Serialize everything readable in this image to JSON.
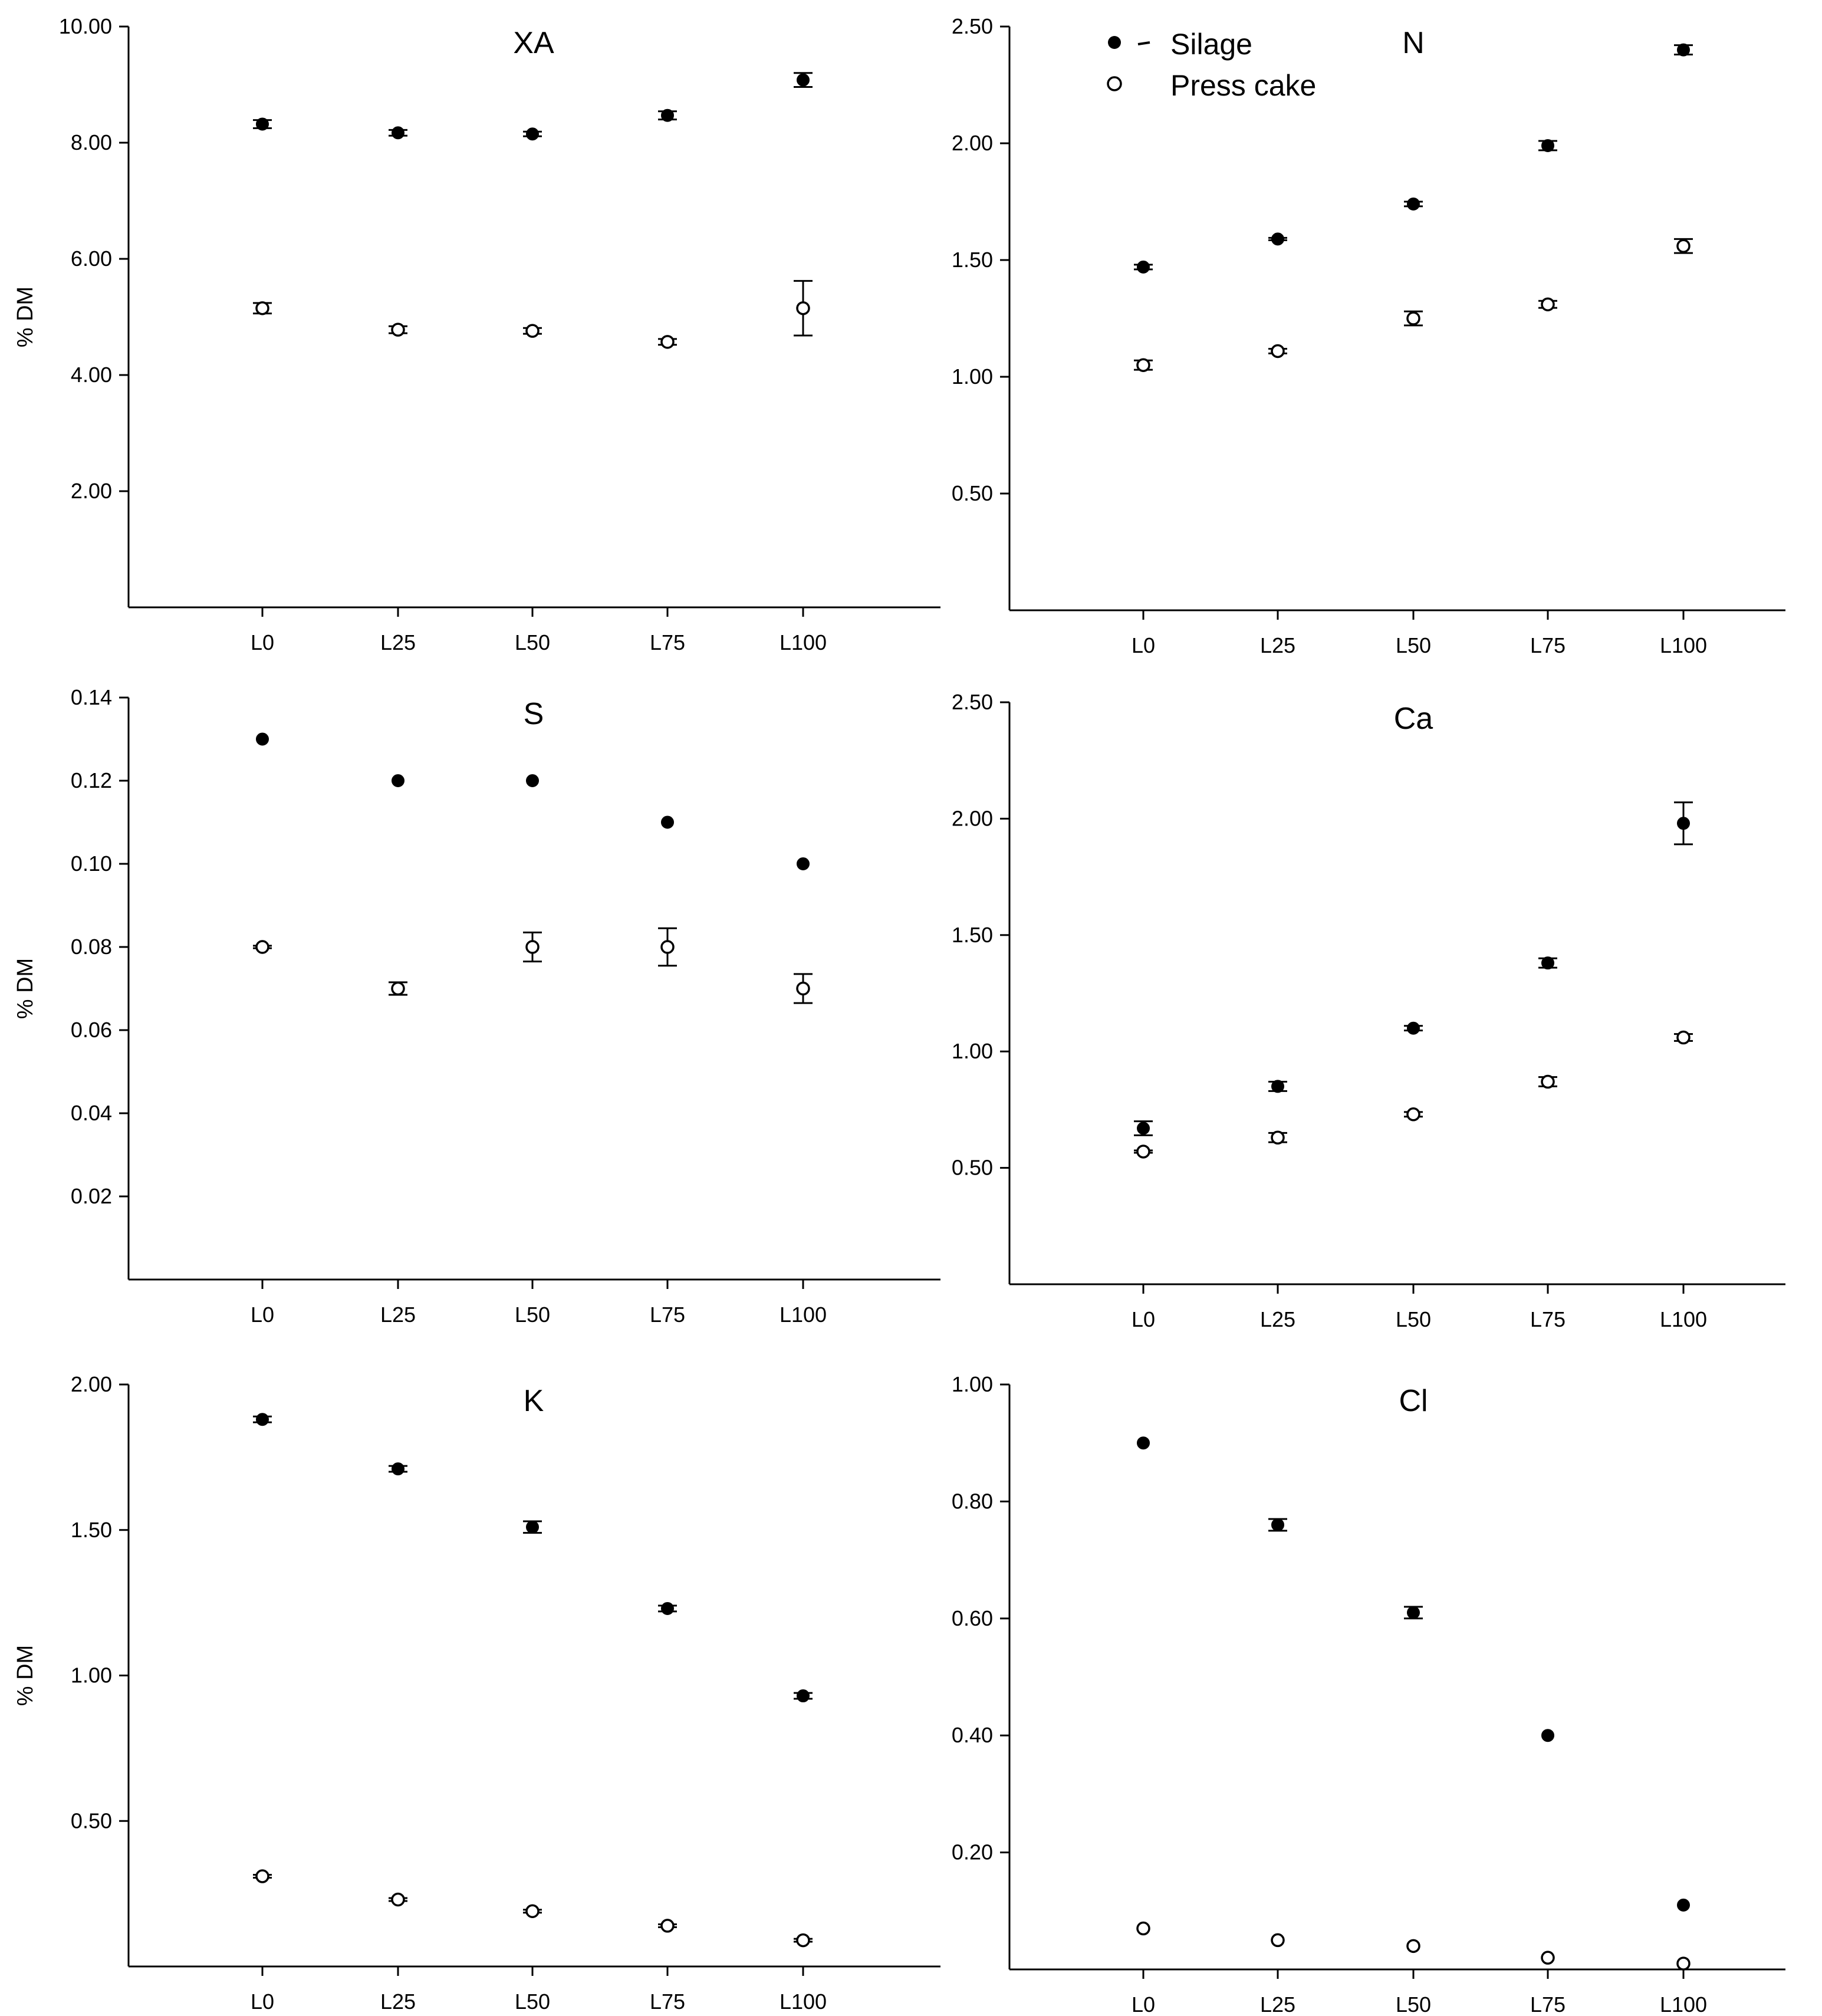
{
  "figure": {
    "legend": [
      {
        "label": "Silage",
        "marker": "filled-circle"
      },
      {
        "label": "Press cake",
        "marker": "open-circle"
      }
    ]
  },
  "chart_data": [
    {
      "type": "scatter",
      "title": "XA",
      "ylabel": "% DM",
      "categories": [
        "L0",
        "L25",
        "L50",
        "L75",
        "L100"
      ],
      "ylim": [
        0,
        10
      ],
      "yticks": [
        "2.00",
        "4.00",
        "6.00",
        "8.00",
        "10.00"
      ],
      "series": [
        {
          "name": "Silage",
          "values": [
            8.32,
            8.17,
            8.15,
            8.47,
            9.08
          ],
          "errors": [
            0.07,
            0.05,
            0.04,
            0.07,
            0.12
          ]
        },
        {
          "name": "Press cake",
          "values": [
            5.15,
            4.78,
            4.76,
            4.57,
            5.15
          ],
          "errors": [
            0.09,
            0.06,
            0.05,
            0.05,
            0.47
          ]
        }
      ]
    },
    {
      "type": "scatter",
      "title": "N",
      "ylabel": "",
      "categories": [
        "L0",
        "L25",
        "L50",
        "L75",
        "L100"
      ],
      "ylim": [
        0,
        2.5
      ],
      "yticks": [
        "0.50",
        "1.00",
        "1.50",
        "2.00",
        "2.50"
      ],
      "series": [
        {
          "name": "Silage",
          "values": [
            1.47,
            1.59,
            1.74,
            1.99,
            2.4
          ],
          "errors": [
            0.01,
            0.005,
            0.01,
            0.02,
            0.02
          ]
        },
        {
          "name": "Press cake",
          "values": [
            1.05,
            1.11,
            1.25,
            1.31,
            1.56
          ],
          "errors": [
            0.02,
            0.01,
            0.03,
            0.015,
            0.03
          ]
        }
      ]
    },
    {
      "type": "scatter",
      "title": "S",
      "ylabel": "% DM",
      "categories": [
        "L0",
        "L25",
        "L50",
        "L75",
        "L100"
      ],
      "ylim": [
        0,
        0.14
      ],
      "yticks": [
        "0.02",
        "0.04",
        "0.06",
        "0.08",
        "0.10",
        "0.12",
        "0.14"
      ],
      "series": [
        {
          "name": "Silage",
          "values": [
            0.13,
            0.12,
            0.12,
            0.11,
            0.1
          ],
          "errors": [
            0,
            0,
            0,
            0,
            0
          ]
        },
        {
          "name": "Press cake",
          "values": [
            0.08,
            0.07,
            0.08,
            0.08,
            0.07
          ],
          "errors": [
            0.0003,
            0.0015,
            0.0035,
            0.0045,
            0.0035
          ]
        }
      ]
    },
    {
      "type": "scatter",
      "title": "Ca",
      "ylabel": "",
      "categories": [
        "L0",
        "L25",
        "L50",
        "L75",
        "L100"
      ],
      "ylim": [
        0,
        2.5
      ],
      "yticks": [
        "0.50",
        "1.00",
        "1.50",
        "2.00",
        "2.50"
      ],
      "series": [
        {
          "name": "Silage",
          "values": [
            0.67,
            0.85,
            1.1,
            1.38,
            1.98
          ],
          "errors": [
            0.03,
            0.02,
            0.01,
            0.02,
            0.09
          ]
        },
        {
          "name": "Press cake",
          "values": [
            0.57,
            0.63,
            0.73,
            0.87,
            1.06
          ],
          "errors": [
            0.005,
            0.02,
            0.01,
            0.02,
            0.015
          ]
        }
      ]
    },
    {
      "type": "scatter",
      "title": "K",
      "ylabel": "% DM",
      "categories": [
        "L0",
        "L25",
        "L50",
        "L75",
        "L100"
      ],
      "ylim": [
        0,
        2.0
      ],
      "yticks": [
        "0.50",
        "1.00",
        "1.50",
        "2.00"
      ],
      "series": [
        {
          "name": "Silage",
          "values": [
            1.88,
            1.71,
            1.51,
            1.23,
            0.93
          ],
          "errors": [
            0.01,
            0.01,
            0.02,
            0.01,
            0.01
          ]
        },
        {
          "name": "Press cake",
          "values": [
            0.31,
            0.23,
            0.19,
            0.14,
            0.09
          ],
          "errors": [
            0.005,
            0.005,
            0.005,
            0.005,
            0.005
          ]
        }
      ]
    },
    {
      "type": "scatter",
      "title": "Cl",
      "ylabel": "",
      "categories": [
        "L0",
        "L25",
        "L50",
        "L75",
        "L100"
      ],
      "ylim": [
        0,
        1.0
      ],
      "yticks": [
        "0.20",
        "0.40",
        "0.60",
        "0.80",
        "1.00"
      ],
      "series": [
        {
          "name": "Silage",
          "values": [
            0.9,
            0.76,
            0.61,
            0.4,
            0.11
          ],
          "errors": [
            0,
            0.01,
            0.01,
            0,
            0
          ]
        },
        {
          "name": "Press cake",
          "values": [
            0.07,
            0.05,
            0.04,
            0.02,
            0.01
          ],
          "errors": [
            0,
            0,
            0,
            0,
            0
          ]
        }
      ]
    }
  ]
}
